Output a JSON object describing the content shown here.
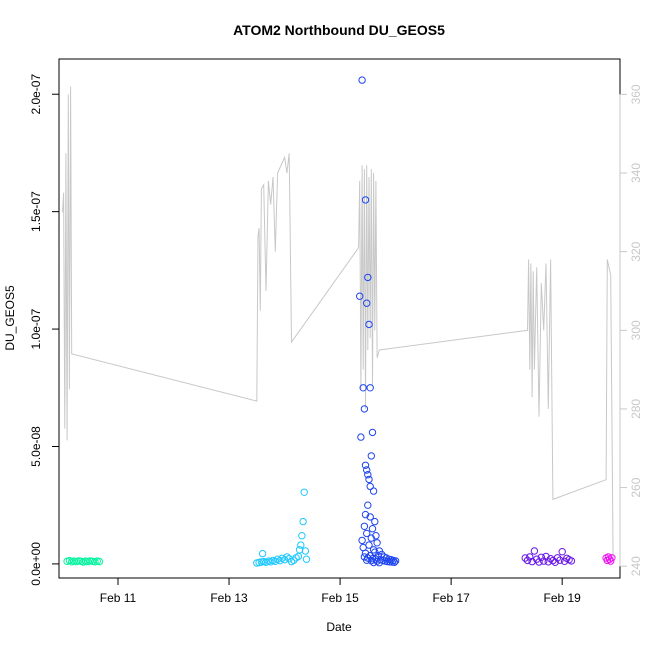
{
  "chart_data": {
    "type": "scatter",
    "title": "ATOM2 Northbound DU_GEOS5",
    "xlabel": "Date",
    "ylabel": "DU_GEOS5",
    "x_ticks": [
      "Feb 11",
      "Feb 13",
      "Feb 15",
      "Feb 17",
      "Feb 19"
    ],
    "y_ticks": [
      "0.0e+00",
      "5.0e-08",
      "1.0e-07",
      "1.5e-07",
      "2.0e-07"
    ],
    "y2_ticks": [
      "240",
      "260",
      "280",
      "300",
      "320",
      "340",
      "360"
    ],
    "xlim": [
      "2017-02-09T22:30",
      "2017-02-20T01:00"
    ],
    "ylim": [
      -6e-09,
      2.15e-07
    ],
    "y2lim": [
      237,
      369
    ],
    "colors": {
      "line": "#c8c8c8",
      "groups": [
        "#00f59c",
        "#1ec8ff",
        "#1f45f0",
        "#6a17e8",
        "#ee10f2"
      ]
    },
    "series": [
      {
        "points": [
          [
            "2017-02-10T02:00",
            1.1e-09
          ],
          [
            "2017-02-10T03:00",
            1.4e-09
          ],
          [
            "2017-02-10T04:00",
            9e-10
          ],
          [
            "2017-02-10T05:00",
            1.2e-09
          ],
          [
            "2017-02-10T06:00",
            1e-09
          ],
          [
            "2017-02-10T07:00",
            1.3e-09
          ],
          [
            "2017-02-10T08:00",
            1.1e-09
          ],
          [
            "2017-02-10T09:00",
            8e-10
          ],
          [
            "2017-02-10T10:00",
            1.2e-09
          ],
          [
            "2017-02-10T11:00",
            1e-09
          ],
          [
            "2017-02-10T12:00",
            1.3e-09
          ],
          [
            "2017-02-10T13:00",
            1.1e-09
          ],
          [
            "2017-02-10T14:00",
            9e-10
          ],
          [
            "2017-02-10T15:00",
            1.2e-09
          ],
          [
            "2017-02-10T16:00",
            1e-09
          ]
        ]
      },
      {
        "points": [
          [
            "2017-02-13T12:00",
            4e-10
          ],
          [
            "2017-02-13T13:00",
            6e-10
          ],
          [
            "2017-02-13T14:00",
            8e-10
          ],
          [
            "2017-02-13T14:30",
            4.4e-09
          ],
          [
            "2017-02-13T15:00",
            1e-09
          ],
          [
            "2017-02-13T16:00",
            7e-10
          ],
          [
            "2017-02-13T17:00",
            1.2e-09
          ],
          [
            "2017-02-13T18:00",
            9e-10
          ],
          [
            "2017-02-13T19:00",
            1.5e-09
          ],
          [
            "2017-02-13T20:00",
            1.1e-09
          ],
          [
            "2017-02-13T21:00",
            2e-09
          ],
          [
            "2017-02-13T22:00",
            1.4e-09
          ],
          [
            "2017-02-13T23:00",
            2.4e-09
          ],
          [
            "2017-02-14T00:00",
            1.8e-09
          ],
          [
            "2017-02-14T01:00",
            3e-09
          ],
          [
            "2017-02-14T02:00",
            2.2e-09
          ],
          [
            "2017-02-14T03:00",
            1e-09
          ],
          [
            "2017-02-14T04:00",
            1.6e-09
          ],
          [
            "2017-02-14T05:00",
            2.6e-09
          ],
          [
            "2017-02-14T06:00",
            3.2e-09
          ],
          [
            "2017-02-14T06:30",
            6e-09
          ],
          [
            "2017-02-14T07:00",
            8e-09
          ],
          [
            "2017-02-14T07:30",
            1.2e-08
          ],
          [
            "2017-02-14T08:00",
            1.8e-08
          ],
          [
            "2017-02-14T08:30",
            3.05e-08
          ],
          [
            "2017-02-14T09:00",
            5.5e-09
          ],
          [
            "2017-02-14T09:30",
            2e-09
          ]
        ]
      },
      {
        "points": [
          [
            "2017-02-15T09:30",
            2.06e-07
          ],
          [
            "2017-02-15T11:00",
            1.55e-07
          ],
          [
            "2017-02-15T12:00",
            1.22e-07
          ],
          [
            "2017-02-15T08:30",
            1.14e-07
          ],
          [
            "2017-02-15T11:30",
            1.11e-07
          ],
          [
            "2017-02-15T12:30",
            1.02e-07
          ],
          [
            "2017-02-15T10:00",
            7.5e-08
          ],
          [
            "2017-02-15T13:00",
            7.5e-08
          ],
          [
            "2017-02-15T10:30",
            6.6e-08
          ],
          [
            "2017-02-15T14:00",
            5.6e-08
          ],
          [
            "2017-02-15T09:00",
            5.4e-08
          ],
          [
            "2017-02-15T13:30",
            4.6e-08
          ],
          [
            "2017-02-15T11:00",
            4.2e-08
          ],
          [
            "2017-02-15T11:30",
            4e-08
          ],
          [
            "2017-02-15T12:00",
            3.8e-08
          ],
          [
            "2017-02-15T12:30",
            3.6e-08
          ],
          [
            "2017-02-15T13:00",
            3.3e-08
          ],
          [
            "2017-02-15T14:30",
            3.1e-08
          ],
          [
            "2017-02-15T12:00",
            2.5e-08
          ],
          [
            "2017-02-15T11:00",
            2.1e-08
          ],
          [
            "2017-02-15T13:00",
            2e-08
          ],
          [
            "2017-02-15T15:00",
            1.8e-08
          ],
          [
            "2017-02-15T10:30",
            1.6e-08
          ],
          [
            "2017-02-15T14:00",
            1.5e-08
          ],
          [
            "2017-02-15T11:30",
            1.3e-08
          ],
          [
            "2017-02-15T15:30",
            1.2e-08
          ],
          [
            "2017-02-15T13:30",
            1.1e-08
          ],
          [
            "2017-02-15T09:30",
            1e-08
          ],
          [
            "2017-02-15T16:00",
            9e-09
          ],
          [
            "2017-02-15T12:30",
            8e-09
          ],
          [
            "2017-02-15T10:00",
            7e-09
          ],
          [
            "2017-02-15T14:30",
            6e-09
          ],
          [
            "2017-02-15T17:00",
            5.5e-09
          ],
          [
            "2017-02-15T15:00",
            5e-09
          ],
          [
            "2017-02-15T11:00",
            4.5e-09
          ],
          [
            "2017-02-15T18:00",
            4e-09
          ],
          [
            "2017-02-15T13:00",
            3.5e-09
          ],
          [
            "2017-02-15T16:30",
            3.5e-09
          ],
          [
            "2017-02-15T19:00",
            3e-09
          ],
          [
            "2017-02-15T10:30",
            3e-09
          ],
          [
            "2017-02-15T20:00",
            2.5e-09
          ],
          [
            "2017-02-15T12:00",
            2.5e-09
          ],
          [
            "2017-02-15T14:00",
            2.2e-09
          ],
          [
            "2017-02-15T21:00",
            2e-09
          ],
          [
            "2017-02-15T15:30",
            2e-09
          ],
          [
            "2017-02-15T22:00",
            1.8e-09
          ],
          [
            "2017-02-15T17:30",
            1.8e-09
          ],
          [
            "2017-02-15T11:30",
            1.6e-09
          ],
          [
            "2017-02-15T23:00",
            1.5e-09
          ],
          [
            "2017-02-15T18:30",
            1.5e-09
          ],
          [
            "2017-02-15T13:30",
            1.4e-09
          ],
          [
            "2017-02-16T00:00",
            1.3e-09
          ],
          [
            "2017-02-15T19:30",
            1.2e-09
          ],
          [
            "2017-02-15T16:00",
            1.2e-09
          ],
          [
            "2017-02-15T20:30",
            1e-09
          ],
          [
            "2017-02-15T21:30",
            9e-10
          ],
          [
            "2017-02-15T22:30",
            8e-10
          ],
          [
            "2017-02-15T23:30",
            7e-10
          ],
          [
            "2017-02-15T14:30",
            6e-10
          ],
          [
            "2017-02-15T17:00",
            5e-10
          ]
        ]
      },
      {
        "points": [
          [
            "2017-02-18T08:00",
            2.5e-09
          ],
          [
            "2017-02-18T09:00",
            1.5e-09
          ],
          [
            "2017-02-18T10:00",
            3e-09
          ],
          [
            "2017-02-18T11:00",
            1e-09
          ],
          [
            "2017-02-18T12:00",
            5.5e-09
          ],
          [
            "2017-02-18T13:00",
            2e-09
          ],
          [
            "2017-02-18T14:00",
            8e-10
          ],
          [
            "2017-02-18T15:00",
            2.8e-09
          ],
          [
            "2017-02-18T16:00",
            1.2e-09
          ],
          [
            "2017-02-18T17:00",
            3.2e-09
          ],
          [
            "2017-02-18T18:00",
            9e-10
          ],
          [
            "2017-02-18T19:00",
            2.2e-09
          ],
          [
            "2017-02-18T20:00",
            1.4e-09
          ],
          [
            "2017-02-18T21:00",
            7e-10
          ],
          [
            "2017-02-18T22:00",
            2.6e-09
          ],
          [
            "2017-02-18T23:00",
            1.6e-09
          ],
          [
            "2017-02-19T00:00",
            5.2e-09
          ],
          [
            "2017-02-19T01:00",
            1.1e-09
          ],
          [
            "2017-02-19T02:00",
            2.4e-09
          ],
          [
            "2017-02-19T03:00",
            1.8e-09
          ],
          [
            "2017-02-19T04:00",
            1.3e-09
          ]
        ]
      },
      {
        "points": [
          [
            "2017-02-19T19:00",
            2.5e-09
          ],
          [
            "2017-02-19T19:30",
            1.5e-09
          ],
          [
            "2017-02-19T20:00",
            3e-09
          ],
          [
            "2017-02-19T20:30",
            2e-09
          ],
          [
            "2017-02-19T21:00",
            1.2e-09
          ],
          [
            "2017-02-19T21:30",
            2.6e-09
          ]
        ]
      }
    ],
    "line_series": {
      "points": [
        [
          "2017-02-10T00:00",
          330.0
        ],
        [
          "2017-02-10T00:30",
          335.0
        ],
        [
          "2017-02-10T01:00",
          275.0
        ],
        [
          "2017-02-10T01:30",
          345.0
        ],
        [
          "2017-02-10T02:00",
          272.0
        ],
        [
          "2017-02-10T02:30",
          360.0
        ],
        [
          "2017-02-10T03:00",
          285.0
        ],
        [
          "2017-02-10T03:30",
          362.0
        ],
        [
          "2017-02-10T04:00",
          294.0
        ],
        [
          "2017-02-13T12:00",
          282.0
        ],
        [
          "2017-02-13T12:30",
          324.0
        ],
        [
          "2017-02-13T13:00",
          326.0
        ],
        [
          "2017-02-13T13:30",
          305.0
        ],
        [
          "2017-02-13T14:00",
          336.0
        ],
        [
          "2017-02-13T15:00",
          337.0
        ],
        [
          "2017-02-13T16:00",
          310.0
        ],
        [
          "2017-02-13T17:00",
          338.0
        ],
        [
          "2017-02-13T18:00",
          332.0
        ],
        [
          "2017-02-13T19:00",
          339.0
        ],
        [
          "2017-02-13T20:00",
          320.0
        ],
        [
          "2017-02-13T21:00",
          340.0
        ],
        [
          "2017-02-14T00:00",
          344.0
        ],
        [
          "2017-02-14T01:00",
          340.0
        ],
        [
          "2017-02-14T02:00",
          345.0
        ],
        [
          "2017-02-14T03:00",
          297.0
        ],
        [
          "2017-02-15T08:00",
          321.0
        ],
        [
          "2017-02-15T08:30",
          338.0
        ],
        [
          "2017-02-15T09:00",
          285.0
        ],
        [
          "2017-02-15T09:30",
          342.0
        ],
        [
          "2017-02-15T10:00",
          290.0
        ],
        [
          "2017-02-15T10:30",
          341.0
        ],
        [
          "2017-02-15T11:00",
          280.0
        ],
        [
          "2017-02-15T11:30",
          342.0
        ],
        [
          "2017-02-15T12:00",
          295.0
        ],
        [
          "2017-02-15T12:30",
          339.0
        ],
        [
          "2017-02-15T13:00",
          298.0
        ],
        [
          "2017-02-15T13:30",
          341.0
        ],
        [
          "2017-02-15T14:00",
          286.0
        ],
        [
          "2017-02-15T14:30",
          340.0
        ],
        [
          "2017-02-15T15:00",
          300.0
        ],
        [
          "2017-02-15T15:30",
          338.0
        ],
        [
          "2017-02-15T16:00",
          293.0
        ],
        [
          "2017-02-15T17:00",
          295.0
        ],
        [
          "2017-02-18T09:00",
          300.0
        ],
        [
          "2017-02-18T09:30",
          318.0
        ],
        [
          "2017-02-18T10:00",
          290.0
        ],
        [
          "2017-02-18T10:30",
          317.0
        ],
        [
          "2017-02-18T11:00",
          283.0
        ],
        [
          "2017-02-18T11:30",
          315.0
        ],
        [
          "2017-02-18T12:00",
          290.0
        ],
        [
          "2017-02-18T13:00",
          316.0
        ],
        [
          "2017-02-18T14:00",
          278.0
        ],
        [
          "2017-02-18T15:00",
          312.0
        ],
        [
          "2017-02-18T16:00",
          300.0
        ],
        [
          "2017-02-18T17:00",
          317.0
        ],
        [
          "2017-02-18T18:00",
          280.0
        ],
        [
          "2017-02-18T19:00",
          318.0
        ],
        [
          "2017-02-18T20:00",
          257.0
        ],
        [
          "2017-02-19T19:00",
          262.0
        ],
        [
          "2017-02-19T19:30",
          318.0
        ],
        [
          "2017-02-19T21:00",
          314.0
        ],
        [
          "2017-02-19T22:00",
          242.0
        ]
      ]
    }
  }
}
